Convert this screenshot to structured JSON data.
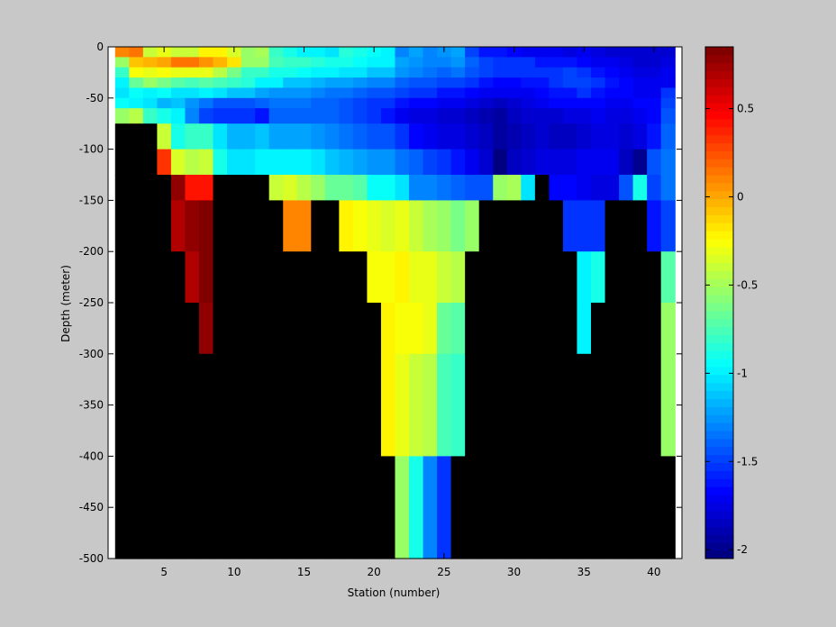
{
  "chart_data": {
    "type": "heatmap",
    "title": "",
    "xlabel": "Station (number)",
    "ylabel": "Depth (meter)",
    "x_range": [
      1,
      42
    ],
    "y_range": [
      -500,
      0
    ],
    "x_ticks": [
      5,
      10,
      15,
      20,
      25,
      30,
      35,
      40
    ],
    "y_ticks": [
      0,
      -50,
      -100,
      -150,
      -200,
      -250,
      -300,
      -350,
      -400,
      -450,
      -500
    ],
    "colorbar": {
      "range": [
        -2.05,
        0.85
      ],
      "ticks": [
        0.5,
        0,
        -0.5,
        -1,
        -1.5,
        -2
      ],
      "colormap": "jet",
      "levels": 64
    },
    "colors": {
      "background": "#c8c8c8",
      "nodata": "#000000"
    },
    "depth_bins": [
      0,
      -10,
      -20,
      -30,
      -40,
      -50,
      -60,
      -75,
      -100,
      -125,
      -150,
      -200,
      -250,
      -300,
      -400,
      -500
    ],
    "stations": [
      2,
      3,
      4,
      5,
      6,
      7,
      8,
      9,
      10,
      11,
      12,
      13,
      14,
      15,
      16,
      17,
      18,
      19,
      20,
      21,
      22,
      23,
      24,
      25,
      26,
      27,
      28,
      29,
      30,
      31,
      32,
      33,
      34,
      35,
      36,
      37,
      38,
      39,
      40,
      41
    ],
    "values": [
      [
        0.08,
        -0.55,
        -0.8,
        -1.0,
        -1.05,
        -0.95,
        -0.52,
        null,
        null,
        null,
        null,
        null,
        null,
        null,
        null
      ],
      [
        0.15,
        -0.1,
        -0.25,
        -0.65,
        -0.95,
        -1.0,
        -0.45,
        null,
        null,
        null,
        null,
        null,
        null,
        null,
        null
      ],
      [
        -0.4,
        -0.05,
        -0.3,
        -0.55,
        -1.0,
        -1.05,
        -0.8,
        null,
        null,
        null,
        null,
        null,
        null,
        null,
        null
      ],
      [
        -0.3,
        0.0,
        -0.25,
        -0.6,
        -0.95,
        -1.15,
        -0.9,
        -0.4,
        0.35,
        null,
        null,
        null,
        null,
        null,
        null
      ],
      [
        -0.4,
        0.15,
        -0.3,
        -0.7,
        -1.05,
        -1.1,
        -1.0,
        -0.9,
        -0.35,
        0.8,
        0.7,
        null,
        null,
        null,
        null
      ],
      [
        -0.4,
        0.15,
        -0.3,
        -0.75,
        -1.05,
        -1.25,
        -1.3,
        -0.8,
        -0.45,
        0.4,
        0.8,
        0.7,
        null,
        null,
        null
      ],
      [
        -0.2,
        0.05,
        -0.3,
        -0.7,
        -1.0,
        -1.35,
        -1.5,
        -0.8,
        -0.4,
        0.4,
        0.9,
        0.85,
        0.8,
        null,
        null
      ],
      [
        -0.2,
        -0.05,
        -0.45,
        -0.75,
        -1.05,
        -1.45,
        -1.55,
        -1.05,
        -0.9,
        null,
        null,
        null,
        null,
        null,
        null
      ],
      [
        -0.35,
        -0.15,
        -0.6,
        -0.8,
        -1.1,
        -1.45,
        -1.55,
        -1.15,
        -1.05,
        null,
        null,
        null,
        null,
        null,
        null
      ],
      [
        -0.55,
        -0.55,
        -0.8,
        -0.85,
        -1.1,
        -1.45,
        -1.55,
        -1.15,
        -1.05,
        null,
        null,
        null,
        null,
        null,
        null
      ],
      [
        -0.5,
        -0.55,
        -0.8,
        -1.0,
        -1.2,
        -1.4,
        -1.6,
        -1.1,
        -1.0,
        null,
        null,
        null,
        null,
        null,
        null
      ],
      [
        -0.8,
        -0.75,
        -0.9,
        -1.0,
        -1.25,
        -1.35,
        -1.4,
        -1.2,
        -1.0,
        -0.4,
        null,
        null,
        null,
        null,
        null
      ],
      [
        -0.9,
        -0.8,
        -0.9,
        -1.1,
        -1.25,
        -1.35,
        -1.4,
        -1.2,
        -1.0,
        -0.35,
        0.1,
        null,
        null,
        null,
        null
      ],
      [
        -1.0,
        -0.8,
        -0.95,
        -1.1,
        -1.25,
        -1.35,
        -1.4,
        -1.2,
        -1.0,
        -0.45,
        0.1,
        null,
        null,
        null,
        null
      ],
      [
        -1.0,
        -0.85,
        -1.0,
        -1.15,
        -1.3,
        -1.4,
        -1.4,
        -1.25,
        -1.05,
        -0.55,
        null,
        null,
        null,
        null,
        null
      ],
      [
        -1.05,
        -0.9,
        -1.0,
        -1.2,
        -1.35,
        -1.4,
        -1.4,
        -1.3,
        -1.1,
        -0.65,
        null,
        null,
        null,
        null,
        null
      ],
      [
        -0.85,
        -0.9,
        -1.05,
        -1.2,
        -1.35,
        -1.45,
        -1.45,
        -1.35,
        -1.15,
        -0.65,
        -0.2,
        null,
        null,
        null,
        null
      ],
      [
        -0.9,
        -0.95,
        -1.05,
        -1.25,
        -1.4,
        -1.5,
        -1.5,
        -1.4,
        -1.2,
        -0.7,
        -0.25,
        null,
        null,
        null,
        null
      ],
      [
        -0.95,
        -1.0,
        -1.1,
        -1.3,
        -1.45,
        -1.55,
        -1.55,
        -1.45,
        -1.25,
        -0.95,
        -0.3,
        -0.25,
        null,
        null,
        null
      ],
      [
        -1.0,
        -1.0,
        -1.1,
        -1.3,
        -1.45,
        -1.55,
        -1.6,
        -1.45,
        -1.25,
        -0.95,
        -0.35,
        -0.25,
        -0.2,
        -0.2,
        null
      ],
      [
        -1.3,
        -1.2,
        -1.25,
        -1.4,
        -1.5,
        -1.6,
        -1.7,
        -1.55,
        -1.35,
        -1.05,
        -0.3,
        -0.2,
        -0.25,
        -0.3,
        -0.55
      ],
      [
        -1.2,
        -1.25,
        -1.3,
        -1.45,
        -1.55,
        -1.65,
        -1.75,
        -1.65,
        -1.4,
        -1.3,
        -0.4,
        -0.3,
        -0.25,
        -0.4,
        -0.9
      ],
      [
        -1.3,
        -1.3,
        -1.35,
        -1.45,
        -1.55,
        -1.65,
        -1.75,
        -1.7,
        -1.5,
        -1.3,
        -0.5,
        -0.3,
        -0.3,
        -0.45,
        -1.3
      ],
      [
        -1.25,
        -1.3,
        -1.4,
        -1.5,
        -1.6,
        -1.7,
        -1.8,
        -1.75,
        -1.55,
        -1.35,
        -0.55,
        -0.4,
        -0.65,
        -0.75,
        -1.55
      ],
      [
        -1.2,
        -1.25,
        -1.35,
        -1.5,
        -1.6,
        -1.7,
        -1.8,
        -1.75,
        -1.6,
        -1.4,
        -0.6,
        -0.45,
        -0.7,
        -0.8,
        null
      ],
      [
        -1.5,
        -1.4,
        -1.45,
        -1.55,
        -1.65,
        -1.75,
        -1.85,
        -1.8,
        -1.7,
        -1.45,
        -0.55,
        null,
        null,
        null,
        null
      ],
      [
        -1.6,
        -1.5,
        -1.5,
        -1.6,
        -1.7,
        -1.8,
        -1.9,
        -1.85,
        -1.8,
        -1.45,
        null,
        null,
        null,
        null,
        null
      ],
      [
        -1.6,
        -1.55,
        -1.55,
        -1.65,
        -1.7,
        -1.85,
        -1.95,
        -1.95,
        -2.05,
        -0.55,
        null,
        null,
        null,
        null,
        null
      ],
      [
        -1.65,
        -1.55,
        -1.55,
        -1.65,
        -1.7,
        -1.8,
        -1.85,
        -1.9,
        -1.85,
        -0.5,
        null,
        null,
        null,
        null,
        null
      ],
      [
        -1.7,
        -1.55,
        -1.55,
        -1.6,
        -1.7,
        -1.75,
        -1.8,
        -1.85,
        -1.8,
        -1.05,
        null,
        null,
        null,
        null,
        null
      ],
      [
        -1.7,
        -1.6,
        -1.55,
        -1.6,
        -1.65,
        -1.7,
        -1.8,
        -1.8,
        -1.75,
        null,
        null,
        null,
        null,
        null,
        null
      ],
      [
        -1.7,
        -1.6,
        -1.55,
        -1.55,
        -1.6,
        -1.65,
        -1.8,
        -1.85,
        -1.75,
        -1.65,
        null,
        null,
        null,
        null,
        null
      ],
      [
        -1.75,
        -1.6,
        -1.5,
        -1.5,
        -1.6,
        -1.65,
        -1.75,
        -1.85,
        -1.75,
        -1.65,
        -1.55,
        null,
        null,
        null,
        null
      ],
      [
        -1.7,
        -1.65,
        -1.55,
        -1.5,
        -1.55,
        -1.65,
        -1.75,
        -1.8,
        -1.7,
        -1.7,
        -1.55,
        -1.0,
        -1.0,
        null,
        null
      ],
      [
        -1.75,
        -1.7,
        -1.6,
        -1.55,
        -1.6,
        -1.65,
        -1.7,
        -1.75,
        -1.7,
        -1.75,
        -1.55,
        -0.9,
        null,
        null,
        null
      ],
      [
        -1.8,
        -1.7,
        -1.65,
        -1.6,
        -1.65,
        -1.7,
        -1.75,
        -1.75,
        -1.7,
        -1.75,
        null,
        null,
        null,
        null,
        null
      ],
      [
        -1.8,
        -1.75,
        -1.7,
        -1.65,
        -1.65,
        -1.7,
        -1.75,
        -1.8,
        -1.85,
        -1.45,
        null,
        null,
        null,
        null,
        null
      ],
      [
        -1.8,
        -1.8,
        -1.75,
        -1.7,
        -1.7,
        -1.65,
        -1.7,
        -1.75,
        -2.0,
        -0.9,
        null,
        null,
        null,
        null,
        null
      ],
      [
        -1.8,
        -1.8,
        -1.75,
        -1.7,
        -1.7,
        -1.65,
        -1.65,
        -1.6,
        -1.45,
        -1.5,
        -1.6,
        null,
        null,
        null,
        null
      ],
      [
        -1.8,
        -1.75,
        -1.7,
        -1.7,
        -1.55,
        -1.5,
        -1.45,
        -1.4,
        -1.35,
        -1.35,
        -1.5,
        -0.7,
        -0.55,
        -0.55,
        null
      ]
    ]
  }
}
